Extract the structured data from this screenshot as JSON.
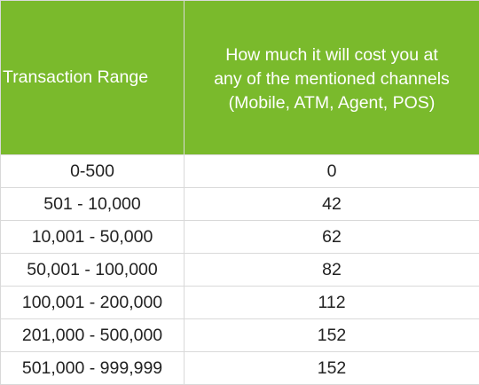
{
  "table": {
    "header_range": "Transaction Range",
    "header_cost_lines": [
      "How much it will cost you at",
      "any of the mentioned channels",
      "(Mobile, ATM, Agent, POS)"
    ],
    "header_color": "#7aba2c",
    "rows": [
      {
        "range": "0-500",
        "cost": "0"
      },
      {
        "range": "501 - 10,000",
        "cost": "42"
      },
      {
        "range": "10,001 - 50,000",
        "cost": "62"
      },
      {
        "range": "50,001 - 100,000",
        "cost": "82"
      },
      {
        "range": "100,001 - 200,000",
        "cost": "112"
      },
      {
        "range": "201,000 - 500,000",
        "cost": "152"
      },
      {
        "range": "501,000 - 999,999",
        "cost": "152"
      }
    ]
  }
}
